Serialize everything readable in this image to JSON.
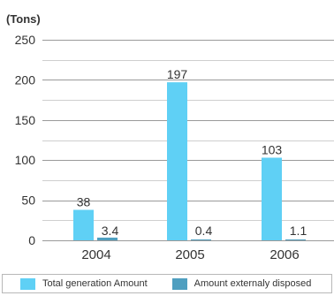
{
  "chart_data": {
    "type": "bar",
    "unit_label": "(Tons)",
    "categories": [
      "2004",
      "2005",
      "2006"
    ],
    "ylim": [
      0,
      250
    ],
    "yticks": [
      0,
      50,
      100,
      150,
      200,
      250
    ],
    "grid": true,
    "legend_position": "bottom",
    "series": [
      {
        "name": "Total generation Amount",
        "values": [
          38,
          197,
          103
        ],
        "labels": [
          "38",
          "197",
          "103"
        ],
        "color": "#5fd0f5"
      },
      {
        "name": "Amount externaly disposed",
        "values": [
          3.4,
          0.4,
          1.1
        ],
        "labels": [
          "3.4",
          "0.4",
          "1.1"
        ],
        "color": "#4f9fc0"
      }
    ]
  }
}
